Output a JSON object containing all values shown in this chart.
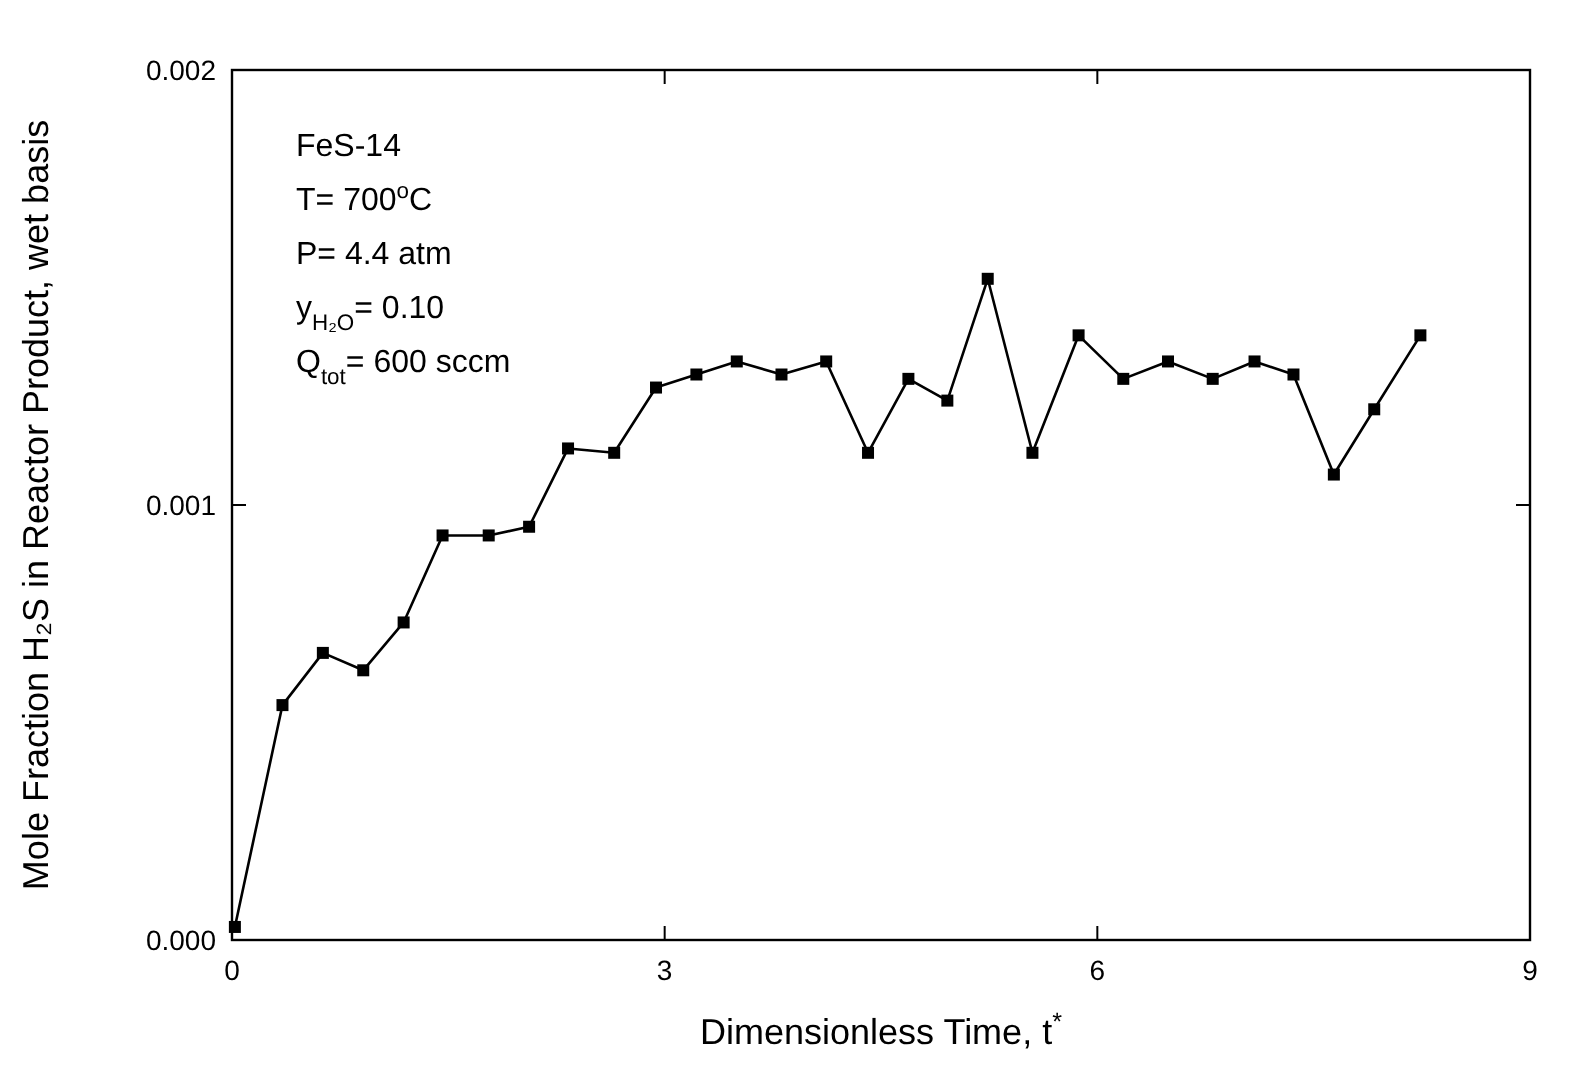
{
  "chart_data": {
    "type": "line",
    "xlabel": "Dimensionless Time, t$^{*}$",
    "ylabel": "Mole Fraction H₂S in Reactor Product, wet basis",
    "annotations": [
      "FeS-14",
      "T= 700$^{o}$C",
      "P= 4.4 atm",
      "y$_{H₂O}$= 0.10",
      "Q$_{tot}$= 600 sccm"
    ],
    "xlim": [
      0,
      9
    ],
    "xticks": [
      0,
      3,
      6,
      9
    ],
    "ylim": [
      0,
      0.002
    ],
    "yticks": [
      {
        "value": 0,
        "label": "0.000"
      },
      {
        "value": 0.001,
        "label": "0.001"
      },
      {
        "value": 0.002,
        "label": "0.002"
      }
    ],
    "grid": false,
    "marker": "square",
    "line_style": "solid",
    "series": [
      {
        "color": "#000000",
        "x": [
          0.02,
          0.35,
          0.63,
          0.91,
          1.19,
          1.46,
          1.78,
          2.06,
          2.33,
          2.65,
          2.94,
          3.22,
          3.5,
          3.81,
          4.12,
          4.41,
          4.69,
          4.96,
          5.24,
          5.55,
          5.87,
          6.18,
          6.49,
          6.8,
          7.09,
          7.36,
          7.64,
          7.92,
          8.24
        ],
        "values": [
          3e-05,
          0.00054,
          0.00066,
          0.00062,
          0.00073,
          0.00093,
          0.00093,
          0.00095,
          0.00113,
          0.00112,
          0.00127,
          0.0013,
          0.00133,
          0.0013,
          0.00133,
          0.00112,
          0.00129,
          0.00124,
          0.00152,
          0.00112,
          0.00139,
          0.00129,
          0.00133,
          0.00129,
          0.00133,
          0.0013,
          0.00107,
          0.00122,
          0.00139
        ]
      }
    ]
  }
}
